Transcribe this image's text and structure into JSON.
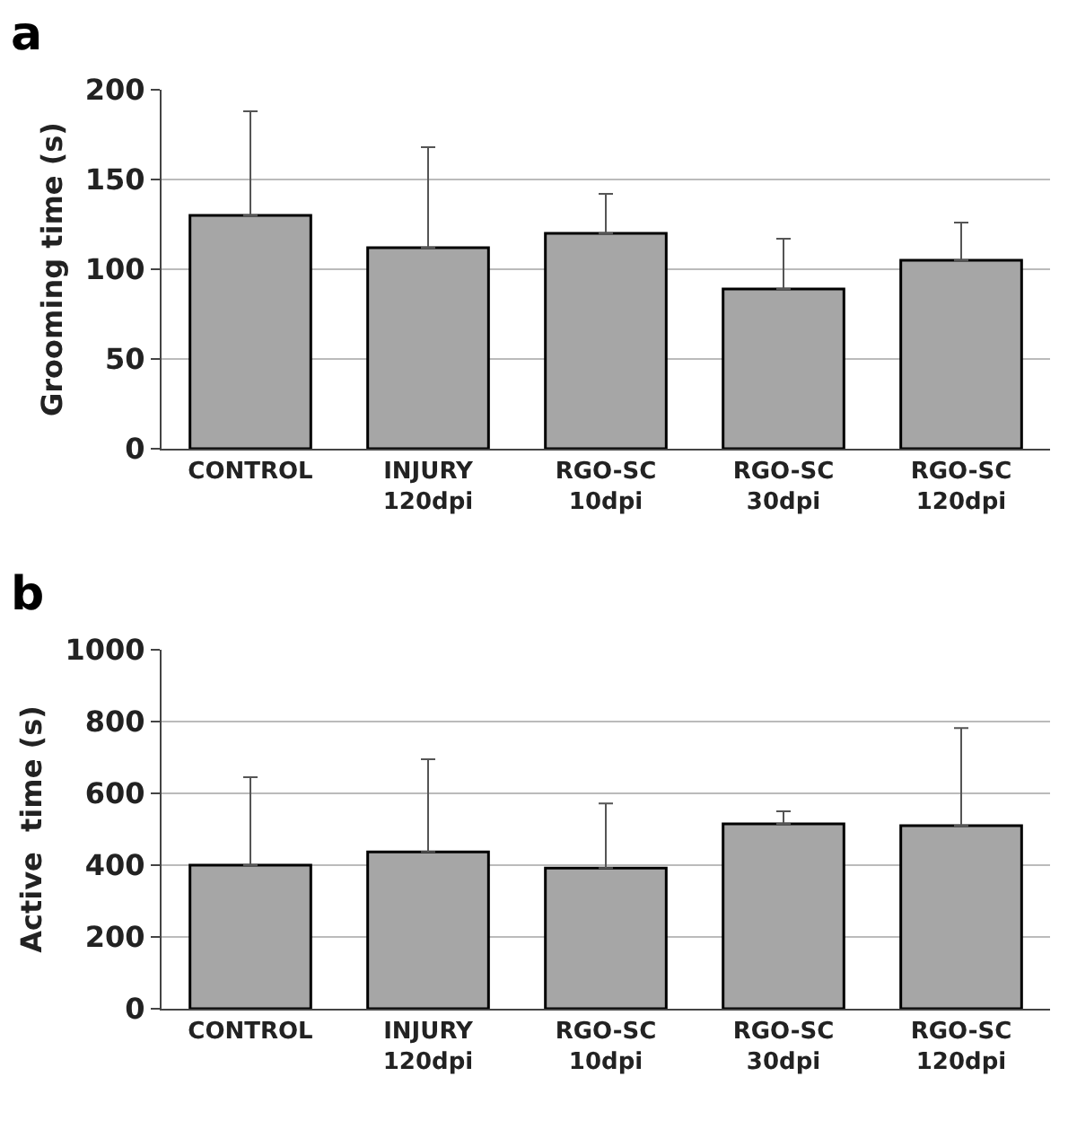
{
  "chart_data": [
    {
      "type": "bar",
      "title": "a",
      "ylabel": "Grooming time (s)",
      "categories": [
        "CONTROL",
        "INJURY\n120dpi",
        "RGO-SC\n10dpi",
        "RGO-SC\n30dpi",
        "RGO-SC\n120dpi"
      ],
      "series": [
        {
          "color": "#a6a6a6",
          "values": [
            130,
            112,
            120,
            89,
            105
          ],
          "errors": [
            [
              130,
              188
            ],
            [
              112,
              168
            ],
            [
              120,
              142
            ],
            [
              89,
              117
            ],
            [
              105,
              126
            ]
          ]
        }
      ],
      "ylim": [
        0,
        200
      ],
      "yticks": [
        0,
        50,
        100,
        150,
        200
      ],
      "grid": "y"
    },
    {
      "type": "bar",
      "title": "b",
      "ylabel": "Active  time (s)",
      "categories": [
        "CONTROL",
        "INJURY\n120dpi",
        "RGO-SC\n10dpi",
        "RGO-SC\n30dpi",
        "RGO-SC\n120dpi"
      ],
      "series": [
        {
          "color": "#a6a6a6",
          "values": [
            400,
            437,
            392,
            515,
            510
          ],
          "errors": [
            [
              400,
              645
            ],
            [
              437,
              695
            ],
            [
              392,
              572
            ],
            [
              515,
              550
            ],
            [
              510,
              782
            ]
          ]
        }
      ],
      "ylim": [
        0,
        1000
      ],
      "yticks": [
        0,
        200,
        400,
        600,
        800,
        1000
      ],
      "grid": "y"
    }
  ]
}
